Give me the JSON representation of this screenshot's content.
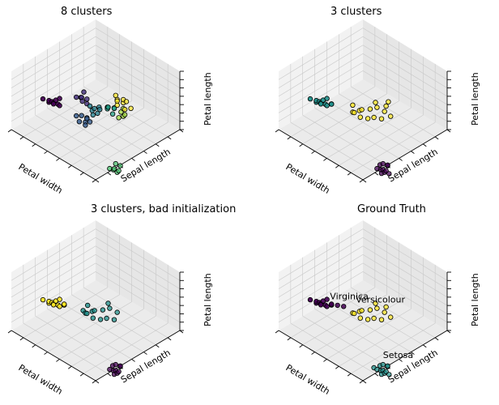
{
  "figure": {
    "background": "#ffffff",
    "pane_color": "#f2f2f2",
    "grid_color": "#c8c8c8",
    "edge_color": "#000000"
  },
  "chart_data": [
    {
      "type": "scatter",
      "projection": "3d",
      "title": "8 clusters",
      "xlabel": "Petal width",
      "ylabel": "Sepal length",
      "zlabel": "Petal length",
      "grid": true,
      "series": [
        {
          "color": "#440154",
          "points": [
            [
              0.05,
              0.25,
              0.95
            ],
            [
              0.1,
              0.2,
              0.9
            ],
            [
              0.08,
              0.28,
              0.92
            ],
            [
              0.12,
              0.22,
              0.88
            ],
            [
              0.06,
              0.3,
              0.97
            ],
            [
              0.15,
              0.24,
              0.9
            ],
            [
              0.1,
              0.32,
              0.93
            ],
            [
              0.04,
              0.18,
              0.96
            ],
            [
              0.14,
              0.3,
              0.86
            ],
            [
              0.18,
              0.26,
              0.92
            ]
          ]
        },
        {
          "color": "#46327e",
          "points": [
            [
              0.42,
              0.3,
              0.78
            ],
            [
              0.45,
              0.28,
              0.74
            ],
            [
              0.4,
              0.34,
              0.76
            ],
            [
              0.48,
              0.32,
              0.72
            ],
            [
              0.44,
              0.36,
              0.7
            ],
            [
              0.5,
              0.26,
              0.78
            ],
            [
              0.38,
              0.28,
              0.8
            ]
          ]
        },
        {
          "color": "#365c8d",
          "points": [
            [
              0.35,
              0.38,
              0.58
            ],
            [
              0.38,
              0.42,
              0.55
            ],
            [
              0.3,
              0.36,
              0.6
            ],
            [
              0.34,
              0.44,
              0.52
            ],
            [
              0.4,
              0.4,
              0.5
            ],
            [
              0.28,
              0.42,
              0.56
            ],
            [
              0.36,
              0.48,
              0.54
            ],
            [
              0.32,
              0.46,
              0.5
            ]
          ]
        },
        {
          "color": "#277f8e",
          "points": [
            [
              0.45,
              0.42,
              0.62
            ],
            [
              0.5,
              0.4,
              0.6
            ],
            [
              0.48,
              0.46,
              0.58
            ],
            [
              0.52,
              0.44,
              0.64
            ],
            [
              0.46,
              0.38,
              0.66
            ],
            [
              0.55,
              0.42,
              0.56
            ],
            [
              0.42,
              0.46,
              0.6
            ]
          ]
        },
        {
          "color": "#1fa187",
          "points": [
            [
              0.55,
              0.52,
              0.68
            ],
            [
              0.58,
              0.5,
              0.64
            ],
            [
              0.6,
              0.56,
              0.66
            ],
            [
              0.52,
              0.55,
              0.7
            ],
            [
              0.62,
              0.54,
              0.62
            ],
            [
              0.56,
              0.58,
              0.6
            ]
          ]
        },
        {
          "color": "#4ac16d",
          "points": [
            [
              0.28,
              0.88,
              0.1
            ],
            [
              0.3,
              0.92,
              0.08
            ],
            [
              0.25,
              0.9,
              0.12
            ],
            [
              0.32,
              0.86,
              0.14
            ],
            [
              0.26,
              0.94,
              0.1
            ],
            [
              0.34,
              0.9,
              0.12
            ],
            [
              0.22,
              0.88,
              0.15
            ]
          ]
        },
        {
          "color": "#a0da39",
          "points": [
            [
              0.7,
              0.55,
              0.5
            ],
            [
              0.72,
              0.58,
              0.46
            ],
            [
              0.68,
              0.6,
              0.48
            ],
            [
              0.74,
              0.54,
              0.52
            ],
            [
              0.66,
              0.56,
              0.44
            ]
          ]
        },
        {
          "color": "#fde725",
          "points": [
            [
              0.75,
              0.45,
              0.6
            ],
            [
              0.78,
              0.5,
              0.56
            ],
            [
              0.72,
              0.48,
              0.62
            ],
            [
              0.8,
              0.52,
              0.58
            ],
            [
              0.76,
              0.42,
              0.64
            ],
            [
              0.82,
              0.46,
              0.55
            ],
            [
              0.7,
              0.5,
              0.58
            ],
            [
              0.74,
              0.56,
              0.52
            ],
            [
              0.78,
              0.6,
              0.54
            ]
          ]
        }
      ]
    },
    {
      "type": "scatter",
      "projection": "3d",
      "title": "3 clusters",
      "xlabel": "Petal width",
      "ylabel": "Sepal length",
      "zlabel": "Petal length",
      "grid": true,
      "series": [
        {
          "color": "#440154",
          "points": [
            [
              0.28,
              0.9,
              0.1
            ],
            [
              0.3,
              0.92,
              0.08
            ],
            [
              0.25,
              0.9,
              0.12
            ],
            [
              0.32,
              0.86,
              0.14
            ],
            [
              0.26,
              0.94,
              0.1
            ],
            [
              0.34,
              0.9,
              0.12
            ],
            [
              0.22,
              0.88,
              0.15
            ],
            [
              0.3,
              0.84,
              0.12
            ],
            [
              0.36,
              0.88,
              0.1
            ],
            [
              0.24,
              0.92,
              0.08
            ],
            [
              0.3,
              0.96,
              0.06
            ]
          ]
        },
        {
          "color": "#21918c",
          "points": [
            [
              0.05,
              0.25,
              0.95
            ],
            [
              0.1,
              0.2,
              0.9
            ],
            [
              0.08,
              0.28,
              0.92
            ],
            [
              0.12,
              0.22,
              0.88
            ],
            [
              0.06,
              0.3,
              0.97
            ],
            [
              0.15,
              0.24,
              0.9
            ],
            [
              0.1,
              0.32,
              0.93
            ],
            [
              0.04,
              0.18,
              0.96
            ],
            [
              0.14,
              0.3,
              0.86
            ],
            [
              0.18,
              0.26,
              0.92
            ],
            [
              0.2,
              0.3,
              0.84
            ],
            [
              0.16,
              0.34,
              0.9
            ]
          ]
        },
        {
          "color": "#fde725",
          "points": [
            [
              0.4,
              0.38,
              0.6
            ],
            [
              0.45,
              0.42,
              0.62
            ],
            [
              0.5,
              0.4,
              0.58
            ],
            [
              0.55,
              0.46,
              0.6
            ],
            [
              0.6,
              0.5,
              0.62
            ],
            [
              0.48,
              0.5,
              0.52
            ],
            [
              0.42,
              0.46,
              0.56
            ],
            [
              0.65,
              0.55,
              0.55
            ],
            [
              0.7,
              0.52,
              0.58
            ],
            [
              0.58,
              0.58,
              0.5
            ],
            [
              0.52,
              0.54,
              0.54
            ],
            [
              0.38,
              0.42,
              0.64
            ],
            [
              0.62,
              0.46,
              0.66
            ],
            [
              0.68,
              0.6,
              0.48
            ],
            [
              0.75,
              0.5,
              0.6
            ],
            [
              0.44,
              0.34,
              0.66
            ]
          ]
        }
      ]
    },
    {
      "type": "scatter",
      "projection": "3d",
      "title": "3 clusters, bad initialization",
      "xlabel": "Petal width",
      "ylabel": "Sepal length",
      "zlabel": "Petal length",
      "grid": true,
      "series": [
        {
          "color": "#fde725",
          "points": [
            [
              0.05,
              0.25,
              0.95
            ],
            [
              0.1,
              0.2,
              0.9
            ],
            [
              0.08,
              0.28,
              0.92
            ],
            [
              0.12,
              0.22,
              0.88
            ],
            [
              0.06,
              0.3,
              0.97
            ],
            [
              0.15,
              0.24,
              0.9
            ],
            [
              0.1,
              0.32,
              0.93
            ],
            [
              0.04,
              0.18,
              0.96
            ],
            [
              0.14,
              0.3,
              0.86
            ],
            [
              0.18,
              0.26,
              0.92
            ],
            [
              0.2,
              0.3,
              0.84
            ],
            [
              0.16,
              0.34,
              0.9
            ],
            [
              0.22,
              0.28,
              0.82
            ]
          ]
        },
        {
          "color": "#21918c",
          "points": [
            [
              0.4,
              0.38,
              0.6
            ],
            [
              0.45,
              0.42,
              0.62
            ],
            [
              0.5,
              0.4,
              0.58
            ],
            [
              0.55,
              0.46,
              0.6
            ],
            [
              0.6,
              0.5,
              0.62
            ],
            [
              0.48,
              0.5,
              0.52
            ],
            [
              0.42,
              0.46,
              0.56
            ],
            [
              0.65,
              0.55,
              0.55
            ],
            [
              0.58,
              0.58,
              0.5
            ],
            [
              0.52,
              0.54,
              0.54
            ],
            [
              0.38,
              0.42,
              0.64
            ],
            [
              0.62,
              0.46,
              0.66
            ],
            [
              0.35,
              0.4,
              0.7
            ],
            [
              0.45,
              0.36,
              0.68
            ]
          ]
        },
        {
          "color": "#440154",
          "points": [
            [
              0.28,
              0.9,
              0.1
            ],
            [
              0.3,
              0.92,
              0.08
            ],
            [
              0.25,
              0.9,
              0.12
            ],
            [
              0.32,
              0.86,
              0.14
            ],
            [
              0.26,
              0.94,
              0.1
            ],
            [
              0.34,
              0.9,
              0.12
            ],
            [
              0.22,
              0.88,
              0.15
            ],
            [
              0.3,
              0.84,
              0.12
            ],
            [
              0.36,
              0.88,
              0.1
            ],
            [
              0.24,
              0.92,
              0.08
            ]
          ]
        }
      ]
    },
    {
      "type": "scatter",
      "projection": "3d",
      "title": "Ground Truth",
      "xlabel": "Petal width",
      "ylabel": "Sepal length",
      "zlabel": "Petal length",
      "grid": true,
      "annotations": [
        {
          "text": "Virginica",
          "at": [
            0.18,
            0.3,
            0.95
          ]
        },
        {
          "text": "Versicolour",
          "at": [
            0.4,
            0.42,
            0.82
          ]
        },
        {
          "text": "Setosa",
          "at": [
            0.28,
            0.9,
            0.32
          ]
        }
      ],
      "series": [
        {
          "color": "#440154",
          "points": [
            [
              0.05,
              0.25,
              0.95
            ],
            [
              0.1,
              0.2,
              0.9
            ],
            [
              0.08,
              0.28,
              0.92
            ],
            [
              0.12,
              0.22,
              0.88
            ],
            [
              0.06,
              0.3,
              0.97
            ],
            [
              0.15,
              0.24,
              0.9
            ],
            [
              0.1,
              0.32,
              0.93
            ],
            [
              0.04,
              0.18,
              0.96
            ],
            [
              0.14,
              0.3,
              0.86
            ],
            [
              0.18,
              0.26,
              0.92
            ],
            [
              0.2,
              0.3,
              0.84
            ],
            [
              0.16,
              0.34,
              0.9
            ],
            [
              0.22,
              0.28,
              0.82
            ],
            [
              0.26,
              0.32,
              0.8
            ],
            [
              0.3,
              0.36,
              0.78
            ]
          ]
        },
        {
          "color": "#fde725",
          "points": [
            [
              0.4,
              0.38,
              0.6
            ],
            [
              0.45,
              0.42,
              0.62
            ],
            [
              0.5,
              0.4,
              0.58
            ],
            [
              0.55,
              0.46,
              0.6
            ],
            [
              0.6,
              0.5,
              0.62
            ],
            [
              0.48,
              0.5,
              0.52
            ],
            [
              0.42,
              0.46,
              0.56
            ],
            [
              0.65,
              0.55,
              0.55
            ],
            [
              0.58,
              0.58,
              0.5
            ],
            [
              0.52,
              0.54,
              0.54
            ],
            [
              0.38,
              0.42,
              0.64
            ],
            [
              0.62,
              0.46,
              0.66
            ],
            [
              0.7,
              0.52,
              0.58
            ],
            [
              0.68,
              0.6,
              0.48
            ]
          ]
        },
        {
          "color": "#21918c",
          "points": [
            [
              0.28,
              0.9,
              0.1
            ],
            [
              0.3,
              0.92,
              0.08
            ],
            [
              0.25,
              0.9,
              0.12
            ],
            [
              0.32,
              0.86,
              0.14
            ],
            [
              0.26,
              0.94,
              0.1
            ],
            [
              0.34,
              0.9,
              0.12
            ],
            [
              0.22,
              0.88,
              0.15
            ],
            [
              0.3,
              0.84,
              0.12
            ],
            [
              0.36,
              0.88,
              0.1
            ],
            [
              0.24,
              0.92,
              0.08
            ],
            [
              0.3,
              0.96,
              0.06
            ],
            [
              0.2,
              0.86,
              0.18
            ]
          ]
        }
      ]
    }
  ]
}
